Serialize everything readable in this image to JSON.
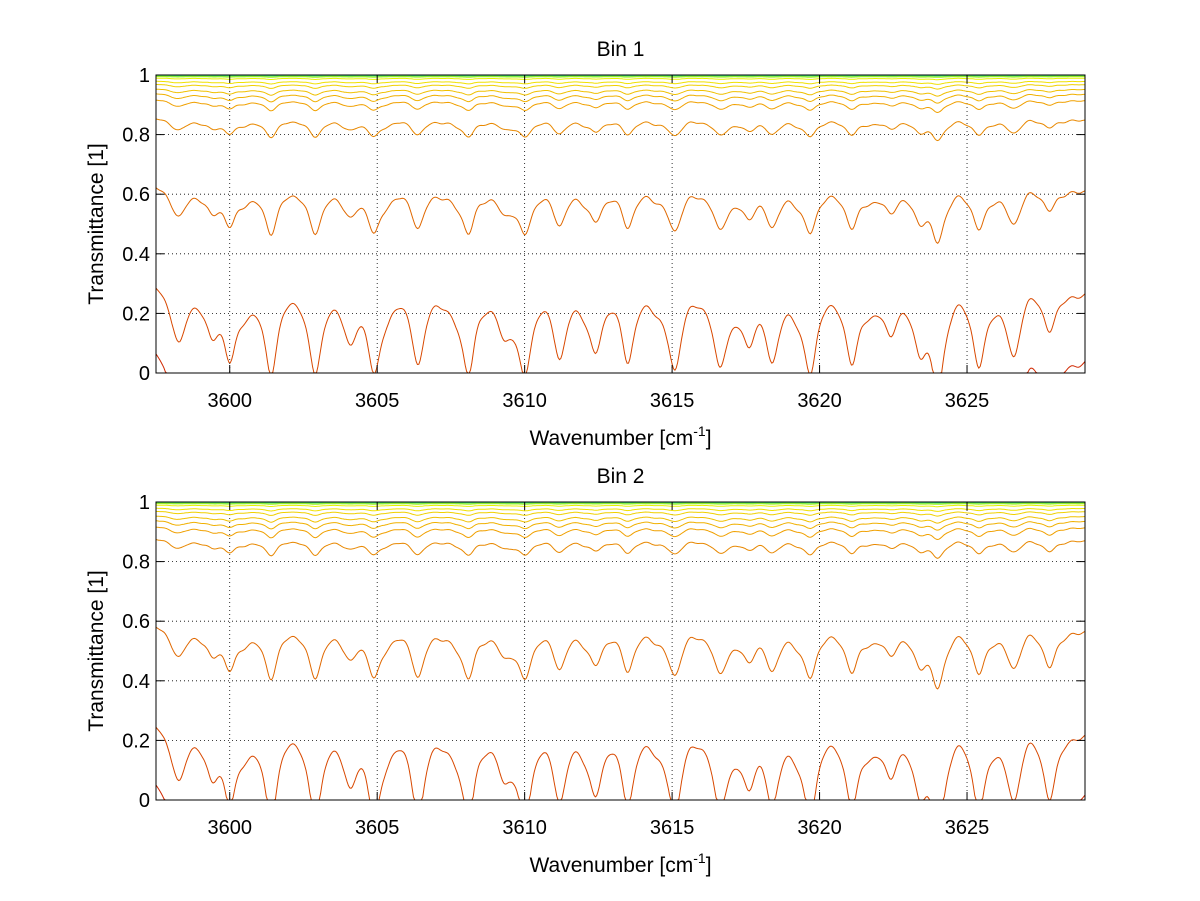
{
  "chart_data": [
    {
      "type": "line",
      "title": "Bin 1",
      "xlabel": {
        "main": "Wavenumber [cm",
        "sup": "-1",
        "tail": "]"
      },
      "ylabel": "Transmittance [1]",
      "xlim": [
        3597.5,
        3629.0
      ],
      "ylim": [
        0,
        1
      ],
      "xticks": [
        3600,
        3605,
        3610,
        3615,
        3620,
        3625
      ],
      "xtick_labels": [
        "3600",
        "3605",
        "3610",
        "3615",
        "3620",
        "3625"
      ],
      "yticks": [
        0,
        0.2,
        0.4,
        0.6,
        0.8,
        1
      ],
      "ytick_labels": [
        "0",
        "0.2",
        "0.4",
        "0.6",
        "0.8",
        "1"
      ],
      "grid": true,
      "line_centers": [
        3598.3,
        3599.4,
        3600.0,
        3601.4,
        3602.9,
        3604.1,
        3604.9,
        3606.4,
        3608.1,
        3609.3,
        3610.0,
        3611.2,
        3612.4,
        3613.5,
        3615.1,
        3616.6,
        3617.6,
        3618.4,
        3619.7,
        3621.1,
        3622.4,
        3623.4,
        3624.0,
        3625.4,
        3626.6,
        3627.8
      ],
      "line_depths": [
        0.55,
        0.5,
        0.8,
        1.0,
        0.85,
        0.6,
        0.9,
        0.9,
        1.0,
        0.5,
        0.85,
        0.8,
        0.6,
        0.85,
        0.95,
        0.85,
        0.6,
        0.8,
        0.95,
        0.85,
        0.55,
        0.6,
        1.0,
        0.9,
        0.7,
        0.5
      ],
      "series": [
        {
          "base": 0.9995,
          "color": "#0000a0"
        },
        {
          "base": 0.9993,
          "color": "#0060ff"
        },
        {
          "base": 0.999,
          "color": "#00c8ff"
        },
        {
          "base": 0.998,
          "color": "#20e0a0"
        },
        {
          "base": 0.997,
          "color": "#60f060"
        },
        {
          "base": 0.995,
          "color": "#a0f020"
        },
        {
          "base": 0.99,
          "color": "#e8f000"
        },
        {
          "base": 0.98,
          "color": "#f0e000"
        },
        {
          "base": 0.97,
          "color": "#f0d000"
        },
        {
          "base": 0.955,
          "color": "#f0c000"
        },
        {
          "base": 0.94,
          "color": "#f0b000"
        },
        {
          "base": 0.92,
          "color": "#f0a000"
        },
        {
          "base": 0.86,
          "color": "#e88800"
        },
        {
          "base": 0.64,
          "color": "#e06800"
        },
        {
          "base": 0.32,
          "color": "#d84800"
        },
        {
          "base": 0.11,
          "color": "#d02800"
        },
        {
          "base": 0.045,
          "color": "#c01800"
        },
        {
          "base": 0.022,
          "color": "#a00000"
        },
        {
          "base": 0.012,
          "color": "#900000"
        },
        {
          "base": 0.006,
          "color": "#800000"
        }
      ]
    },
    {
      "type": "line",
      "title": "Bin 2",
      "xlabel": {
        "main": "Wavenumber [cm",
        "sup": "-1",
        "tail": "]"
      },
      "ylabel": "Transmittance [1]",
      "xlim": [
        3597.5,
        3629.0
      ],
      "ylim": [
        0,
        1
      ],
      "xticks": [
        3600,
        3605,
        3610,
        3615,
        3620,
        3625
      ],
      "xtick_labels": [
        "3600",
        "3605",
        "3610",
        "3615",
        "3620",
        "3625"
      ],
      "yticks": [
        0,
        0.2,
        0.4,
        0.6,
        0.8,
        1
      ],
      "ytick_labels": [
        "0",
        "0.2",
        "0.4",
        "0.6",
        "0.8",
        "1"
      ],
      "grid": true,
      "line_centers": [
        3598.3,
        3599.4,
        3600.0,
        3601.4,
        3602.9,
        3604.1,
        3604.9,
        3606.4,
        3608.1,
        3609.3,
        3610.0,
        3611.2,
        3612.4,
        3613.5,
        3615.1,
        3616.6,
        3617.6,
        3618.4,
        3619.7,
        3621.1,
        3622.4,
        3623.4,
        3624.0,
        3625.4,
        3626.6,
        3627.8
      ],
      "line_depths": [
        0.5,
        0.5,
        0.8,
        1.0,
        0.85,
        0.6,
        0.9,
        1.0,
        1.0,
        0.5,
        0.85,
        0.8,
        0.6,
        0.85,
        0.95,
        0.85,
        0.6,
        0.8,
        0.95,
        0.85,
        0.55,
        0.6,
        1.0,
        0.9,
        0.7,
        0.8
      ],
      "series": [
        {
          "base": 0.9995,
          "color": "#0000a0"
        },
        {
          "base": 0.9993,
          "color": "#0060ff"
        },
        {
          "base": 0.999,
          "color": "#00c8ff"
        },
        {
          "base": 0.998,
          "color": "#20e0a0"
        },
        {
          "base": 0.997,
          "color": "#60f060"
        },
        {
          "base": 0.995,
          "color": "#a0f020"
        },
        {
          "base": 0.99,
          "color": "#e8f000"
        },
        {
          "base": 0.98,
          "color": "#f0e000"
        },
        {
          "base": 0.97,
          "color": "#f0d000"
        },
        {
          "base": 0.955,
          "color": "#f0c000"
        },
        {
          "base": 0.94,
          "color": "#f0b000"
        },
        {
          "base": 0.92,
          "color": "#f0a000"
        },
        {
          "base": 0.88,
          "color": "#e88800"
        },
        {
          "base": 0.6,
          "color": "#e06800"
        },
        {
          "base": 0.28,
          "color": "#d84800"
        },
        {
          "base": 0.095,
          "color": "#d02800"
        },
        {
          "base": 0.035,
          "color": "#c01800"
        },
        {
          "base": 0.018,
          "color": "#a00000"
        },
        {
          "base": 0.009,
          "color": "#900000"
        },
        {
          "base": 0.004,
          "color": "#800000"
        }
      ]
    }
  ]
}
